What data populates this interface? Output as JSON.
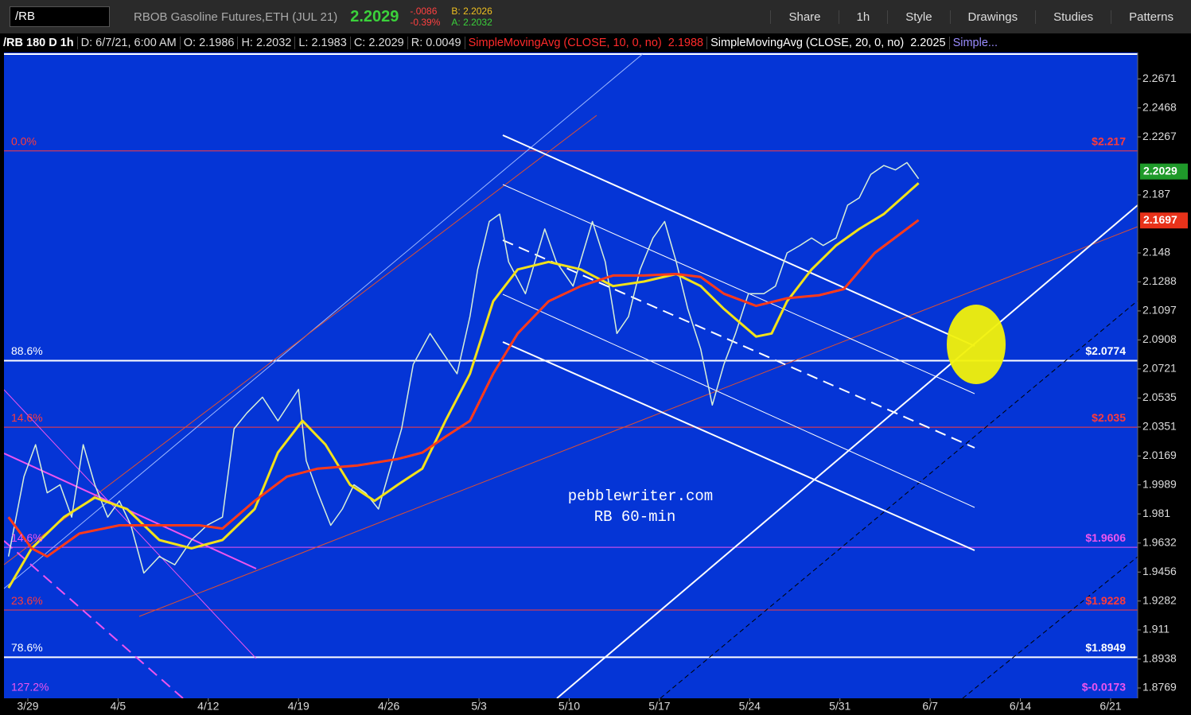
{
  "toolbar": {
    "symbol": "/RB",
    "description": "RBOB Gasoline Futures,ETH (JUL 21)",
    "last": "2.2029",
    "change": "-.0086",
    "change_pct": "-0.39%",
    "bid": "B: 2.2026",
    "ask": "A: 2.2032",
    "buttons": [
      "Share",
      "1h",
      "Style",
      "Drawings",
      "Studies",
      "Patterns"
    ]
  },
  "info_bar": {
    "items": [
      "/RB 180 D 1h",
      "D: 6/7/21, 6:00 AM",
      "O: 2.1986",
      "H: 2.2032",
      "L: 2.1983",
      "C: 2.2029",
      "R: 0.0049"
    ],
    "studies": [
      {
        "text": "SimpleMovingAvg (CLOSE, 10, 0, no)",
        "value": "2.1988",
        "color": "#ff2a2a"
      },
      {
        "text": "SimpleMovingAvg (CLOSE, 20, 0, no)",
        "value": "2.2025",
        "color": "#ffffff"
      }
    ],
    "more": "Simple..."
  },
  "chart_data": {
    "type": "line",
    "log_scale": true,
    "watermark": [
      "pebblewriter.com",
      "RB 60-min"
    ],
    "xlim": [
      -1.85,
      86.1
    ],
    "xticks": [
      {
        "value": 0,
        "label": "3/29"
      },
      {
        "value": 7,
        "label": "4/5"
      },
      {
        "value": 14,
        "label": "4/12"
      },
      {
        "value": 21,
        "label": "4/19"
      },
      {
        "value": 28,
        "label": "4/26"
      },
      {
        "value": 35,
        "label": "5/3"
      },
      {
        "value": 42,
        "label": "5/10"
      },
      {
        "value": 49,
        "label": "5/17"
      },
      {
        "value": 56,
        "label": "5/24"
      },
      {
        "value": 63,
        "label": "5/31"
      },
      {
        "value": 70,
        "label": "6/7"
      },
      {
        "value": 77,
        "label": "6/14"
      },
      {
        "value": 84,
        "label": "6/21"
      }
    ],
    "ylim": [
      1.8709,
      2.2846
    ],
    "yticks": [
      2.2671,
      2.2468,
      2.2267,
      2.187,
      2.148,
      2.1288,
      2.1097,
      2.0908,
      2.0721,
      2.0535,
      2.0351,
      2.0169,
      1.9989,
      1.981,
      1.9632,
      1.9456,
      1.9282,
      1.911,
      1.8938,
      1.8769
    ],
    "series": [
      {
        "color": "#d8f0d8",
        "x": [
          -1.5,
          -0.3,
          0.6,
          1.5,
          2.5,
          3.4,
          4.3,
          5.2,
          6.2,
          7.1,
          8.0,
          9.0,
          10.2,
          11.4,
          12.7,
          13.9,
          15.1,
          16.0,
          17.0,
          18.2,
          19.4,
          21.0,
          21.6,
          22.5,
          23.5,
          24.4,
          25.3,
          26.2,
          27.2,
          28.1,
          29.0,
          29.9,
          31.2,
          32.4,
          33.3,
          34.3,
          34.9,
          35.8,
          36.6,
          37.3,
          38.6,
          40.1,
          41.0,
          42.3,
          43.8,
          44.8,
          45.7,
          46.6,
          47.5,
          48.5,
          49.4,
          50.3,
          51.2,
          52.2,
          53.1,
          54.0,
          54.9,
          55.9,
          57.1,
          58.0,
          58.9,
          59.9,
          60.8,
          61.7,
          62.7,
          63.6,
          64.5,
          65.4,
          66.4,
          67.3,
          68.2,
          69.1
        ],
        "values": [
          1.955,
          2.004,
          2.024,
          1.994,
          1.999,
          1.979,
          2.024,
          1.999,
          1.979,
          1.989,
          1.974,
          1.945,
          1.955,
          1.95,
          1.965,
          1.974,
          1.979,
          2.034,
          2.044,
          2.054,
          2.039,
          2.059,
          2.014,
          1.994,
          1.974,
          1.984,
          1.999,
          1.994,
          1.984,
          2.009,
          2.034,
          2.075,
          2.095,
          2.08,
          2.069,
          2.106,
          2.137,
          2.169,
          2.174,
          2.142,
          2.121,
          2.164,
          2.142,
          2.126,
          2.169,
          2.142,
          2.095,
          2.106,
          2.137,
          2.158,
          2.169,
          2.142,
          2.111,
          2.085,
          2.049,
          2.075,
          2.095,
          2.121,
          2.121,
          2.126,
          2.148,
          2.153,
          2.158,
          2.153,
          2.158,
          2.18,
          2.185,
          2.201,
          2.207,
          2.204,
          2.209,
          2.198
        ]
      },
      {
        "color": "#f2e21a",
        "x": [
          -1.5,
          0.3,
          2.8,
          5.2,
          7.7,
          10.2,
          12.7,
          15.1,
          17.6,
          19.4,
          21.3,
          23.1,
          25.0,
          26.9,
          28.7,
          30.6,
          32.4,
          34.3,
          36.1,
          38.0,
          40.4,
          42.9,
          45.4,
          47.8,
          50.3,
          52.2,
          54.0,
          56.5,
          57.7,
          58.9,
          60.8,
          62.7,
          64.5,
          66.4,
          68.2,
          69.1
        ],
        "values": [
          1.936,
          1.96,
          1.979,
          1.991,
          1.984,
          1.965,
          1.96,
          1.965,
          1.984,
          2.019,
          2.039,
          2.024,
          1.999,
          1.989,
          1.999,
          2.009,
          2.039,
          2.069,
          2.116,
          2.137,
          2.142,
          2.137,
          2.126,
          2.129,
          2.134,
          2.126,
          2.111,
          2.093,
          2.095,
          2.116,
          2.137,
          2.153,
          2.164,
          2.174,
          2.188,
          2.195
        ]
      },
      {
        "color": "#ff3a1a",
        "x": [
          -1.5,
          0.3,
          1.5,
          4.0,
          7.1,
          10.2,
          13.3,
          15.1,
          17.6,
          20.1,
          22.5,
          25.6,
          28.7,
          30.6,
          32.4,
          34.3,
          36.1,
          38.0,
          40.4,
          42.9,
          45.4,
          47.8,
          50.3,
          52.2,
          54.0,
          56.5,
          58.9,
          61.4,
          63.3,
          65.7,
          69.1
        ],
        "values": [
          1.979,
          1.96,
          1.955,
          1.969,
          1.974,
          1.974,
          1.974,
          1.972,
          1.989,
          2.004,
          2.009,
          2.011,
          2.015,
          2.019,
          2.029,
          2.039,
          2.069,
          2.095,
          2.116,
          2.126,
          2.133,
          2.133,
          2.134,
          2.132,
          2.121,
          2.113,
          2.118,
          2.12,
          2.124,
          2.148,
          2.17
        ]
      }
    ],
    "price_badges": [
      {
        "value": 2.2029,
        "color": "#1f9a2a"
      },
      {
        "value": 2.1697,
        "color": "#e8321a"
      }
    ],
    "fib_levels": [
      {
        "pct_label": "0.0%",
        "price_label": "$2.217",
        "value": 2.217,
        "color": "#ff3b3b"
      },
      {
        "pct_label": "88.6%",
        "price_label": "$2.0774",
        "value": 2.0774,
        "color": "#ffffff"
      },
      {
        "pct_label": "14.6%",
        "price_label": "$2.035",
        "value": 2.035,
        "color": "#ff3b3b"
      },
      {
        "pct_label": "14.6%",
        "price_label": "$1.9606",
        "value": 1.9606,
        "color": "#ee55ee"
      },
      {
        "pct_label": "23.6%",
        "price_label": "$1.9228",
        "value": 1.9228,
        "color": "#ff3b3b"
      },
      {
        "pct_label": "78.6%",
        "price_label": "$1.8949",
        "value": 1.8949,
        "color": "#ffffff"
      },
      {
        "pct_label": "127.2%",
        "price_label": "$-0.0173",
        "value": -0.0173,
        "color": "#ee55ee"
      }
    ]
  }
}
